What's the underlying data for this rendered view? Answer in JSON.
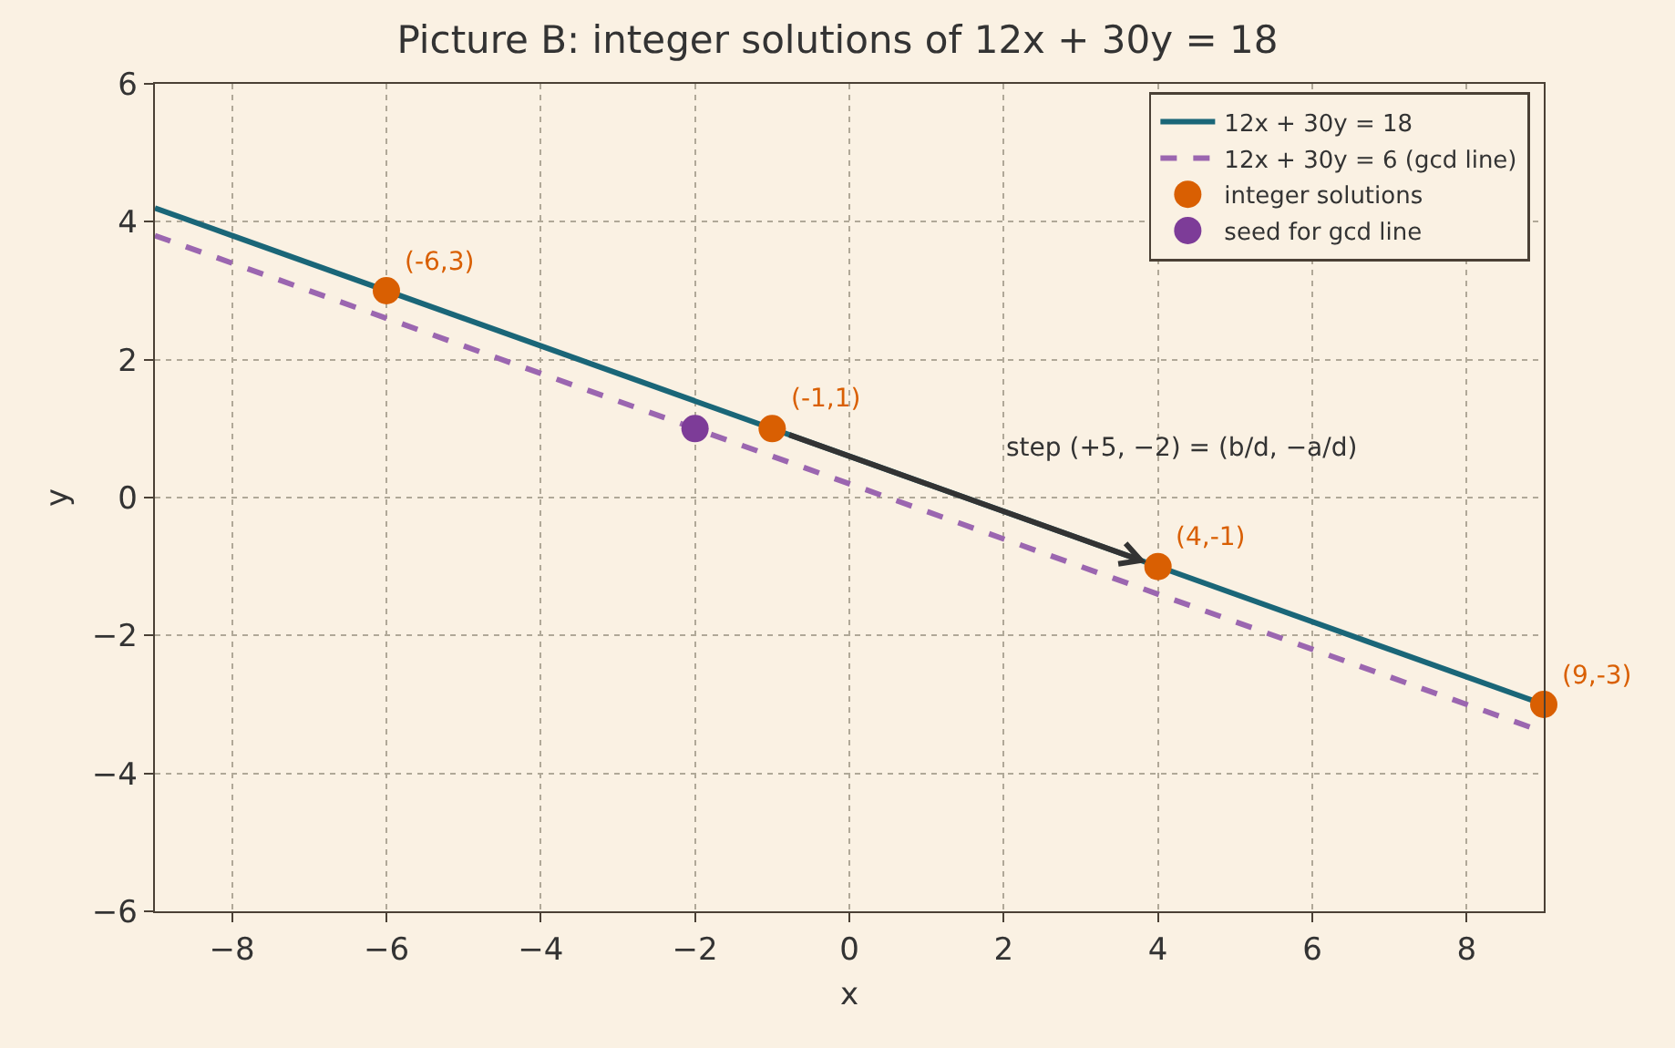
{
  "chart_data": {
    "type": "line",
    "title": "Picture B: integer solutions of 12x + 30y = 18",
    "xlabel": "x",
    "ylabel": "y",
    "xlim": [
      -9,
      9
    ],
    "xticks": [
      {
        "value": -8,
        "label": "−8"
      },
      {
        "value": -6,
        "label": "−6"
      },
      {
        "value": -4,
        "label": "−4"
      },
      {
        "value": -2,
        "label": "−2"
      },
      0,
      2,
      4,
      6,
      8
    ],
    "ylim": [
      -6,
      6
    ],
    "yticks": [
      {
        "value": -6,
        "label": "−6"
      },
      {
        "value": -4,
        "label": "−4"
      },
      {
        "value": -2,
        "label": "−2"
      },
      0,
      2,
      4,
      6
    ],
    "grid": true,
    "legend": "top right",
    "series": [
      {
        "name": "12x + 30y = 18",
        "color": "#1a6678",
        "line_style": "solid",
        "x": [
          -9,
          9
        ],
        "values": [
          4.2,
          -3
        ]
      },
      {
        "name": "12x + 30y = 6 (gcd line)",
        "color": "#9b66b0",
        "line_style": "dashed",
        "x": [
          -9,
          9
        ],
        "values": [
          3.8,
          -3.4
        ]
      },
      {
        "name": "integer solutions",
        "type": "scatter",
        "marker": "circle",
        "color": "#d95f02",
        "x": [
          -6,
          -1,
          4,
          9
        ],
        "values": [
          3,
          1,
          -1,
          -3
        ]
      },
      {
        "name": "seed for gcd line",
        "type": "scatter",
        "marker": "circle",
        "color": "#7d3c98",
        "x": [
          -2
        ],
        "values": [
          1
        ]
      }
    ],
    "annotations": [
      "step (+5, −2) = (b/d, −a/d)",
      {
        "text": "(-6,3)",
        "x": -6,
        "y": 3
      },
      {
        "text": "(-1,1)",
        "x": -1,
        "y": 1
      },
      {
        "text": "(4,-1)",
        "x": 4,
        "y": -1
      },
      {
        "text": "(9,-3)",
        "x": 9,
        "y": -3
      }
    ]
  }
}
